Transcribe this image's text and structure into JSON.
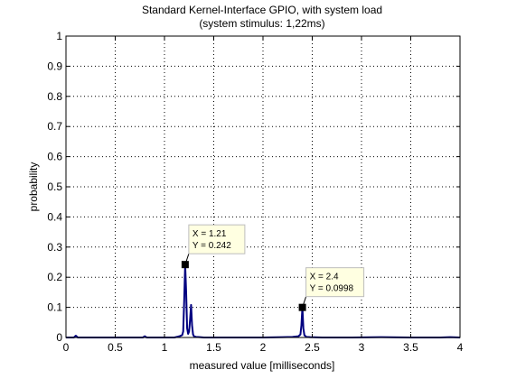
{
  "chart_data": {
    "type": "line",
    "title": "Standard Kernel-Interface GPIO, with system load",
    "subtitle": "(system stimulus: 1,22ms)",
    "xlabel": "measured value [milliseconds]",
    "ylabel": "probability",
    "xlim": [
      0,
      4
    ],
    "ylim": [
      0,
      1
    ],
    "xticks": [
      0,
      0.5,
      1,
      1.5,
      2,
      2.5,
      3,
      3.5,
      4
    ],
    "xtick_labels": [
      "0",
      "0.5",
      "1",
      "1.5",
      "2",
      "2.5",
      "3",
      "3.5",
      "4"
    ],
    "yticks": [
      0,
      0.1,
      0.2,
      0.3,
      0.4,
      0.5,
      0.6,
      0.7,
      0.8,
      0.9,
      1
    ],
    "ytick_labels": [
      "0",
      "0.1",
      "0.2",
      "0.3",
      "0.4",
      "0.5",
      "0.6",
      "0.7",
      "0.8",
      "0.9",
      "1"
    ],
    "grid": true,
    "line_color": "#000080",
    "series": [
      {
        "x": [
          0.0,
          0.08,
          0.1,
          0.12,
          0.78,
          0.8,
          0.82,
          1.1,
          1.14,
          1.16,
          1.18,
          1.19,
          1.2,
          1.21,
          1.22,
          1.23,
          1.24,
          1.25,
          1.26,
          1.27,
          1.28,
          1.29,
          1.3,
          1.32,
          1.36,
          1.4,
          1.6,
          1.8,
          2.0,
          2.2,
          2.3,
          2.36,
          2.38,
          2.39,
          2.4,
          2.41,
          2.42,
          2.44,
          2.48,
          2.6,
          2.9,
          3.2,
          3.5,
          3.8,
          3.9,
          4.0
        ],
        "y": [
          0.0,
          0.0,
          0.006,
          0.0,
          0.0,
          0.004,
          0.0,
          0.0,
          0.003,
          0.005,
          0.008,
          0.02,
          0.12,
          0.242,
          0.15,
          0.03,
          0.012,
          0.02,
          0.06,
          0.108,
          0.04,
          0.01,
          0.004,
          0.002,
          0.001,
          0.0,
          0.0,
          0.0,
          0.0,
          0.001,
          0.002,
          0.004,
          0.01,
          0.04,
          0.0998,
          0.03,
          0.008,
          0.002,
          0.001,
          0.0,
          0.0,
          0.001,
          0.0,
          0.0,
          0.001,
          0.0
        ]
      }
    ],
    "annotations": [
      {
        "x": 1.21,
        "y": 0.242,
        "line1": "X = 1.21",
        "line2": "Y = 0.242"
      },
      {
        "x": 2.4,
        "y": 0.0998,
        "line1": "X = 2.4",
        "line2": "Y = 0.0998"
      }
    ]
  }
}
